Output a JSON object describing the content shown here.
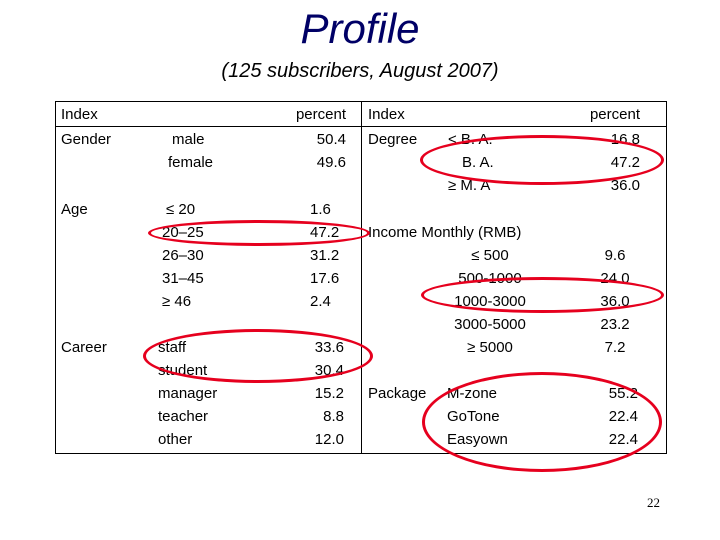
{
  "title": "Profile",
  "subtitle": "(125 subscribers, August 2007)",
  "left": {
    "header_index": "Index",
    "header_percent": "percent",
    "groups": [
      {
        "name": "Gender",
        "items": [
          "male",
          "female"
        ],
        "values": [
          "50.4",
          "49.6"
        ]
      },
      {
        "name": "Age",
        "items": [
          "≤ 20",
          "20–25",
          "26–30",
          "31–45",
          "≥ 46"
        ],
        "values": [
          "1.6",
          "47.2",
          "31.2",
          "17.6",
          "2.4"
        ]
      },
      {
        "name": "Career",
        "items": [
          "staff",
          "student",
          "manager",
          "teacher",
          "other"
        ],
        "values": [
          "33.6",
          "30.4",
          "15.2",
          "8.8",
          "12.0"
        ]
      }
    ]
  },
  "right": {
    "header_index": "Index",
    "header_percent": "percent",
    "degree": {
      "name": "Degree",
      "items": [
        "< B. A.",
        "B. A.",
        "≥ M. A"
      ],
      "values": [
        "16.8",
        "47.2",
        "36.0"
      ]
    },
    "income": {
      "name": "Income Monthly (RMB)",
      "items": [
        "≤ 500",
        "500-1000",
        "1000-3000",
        "3000-5000",
        "≥ 5000"
      ],
      "values": [
        "9.6",
        "24.0",
        "36.0",
        "23.2",
        "7.2"
      ]
    },
    "package": {
      "name": "Package",
      "items": [
        "M-zone",
        "GoTone",
        "Easyown"
      ],
      "values": [
        "55.2",
        "22.4",
        "22.4"
      ]
    }
  },
  "page_number": "22",
  "colors": {
    "title": "#000066",
    "highlight_oval": "#e6001e"
  }
}
